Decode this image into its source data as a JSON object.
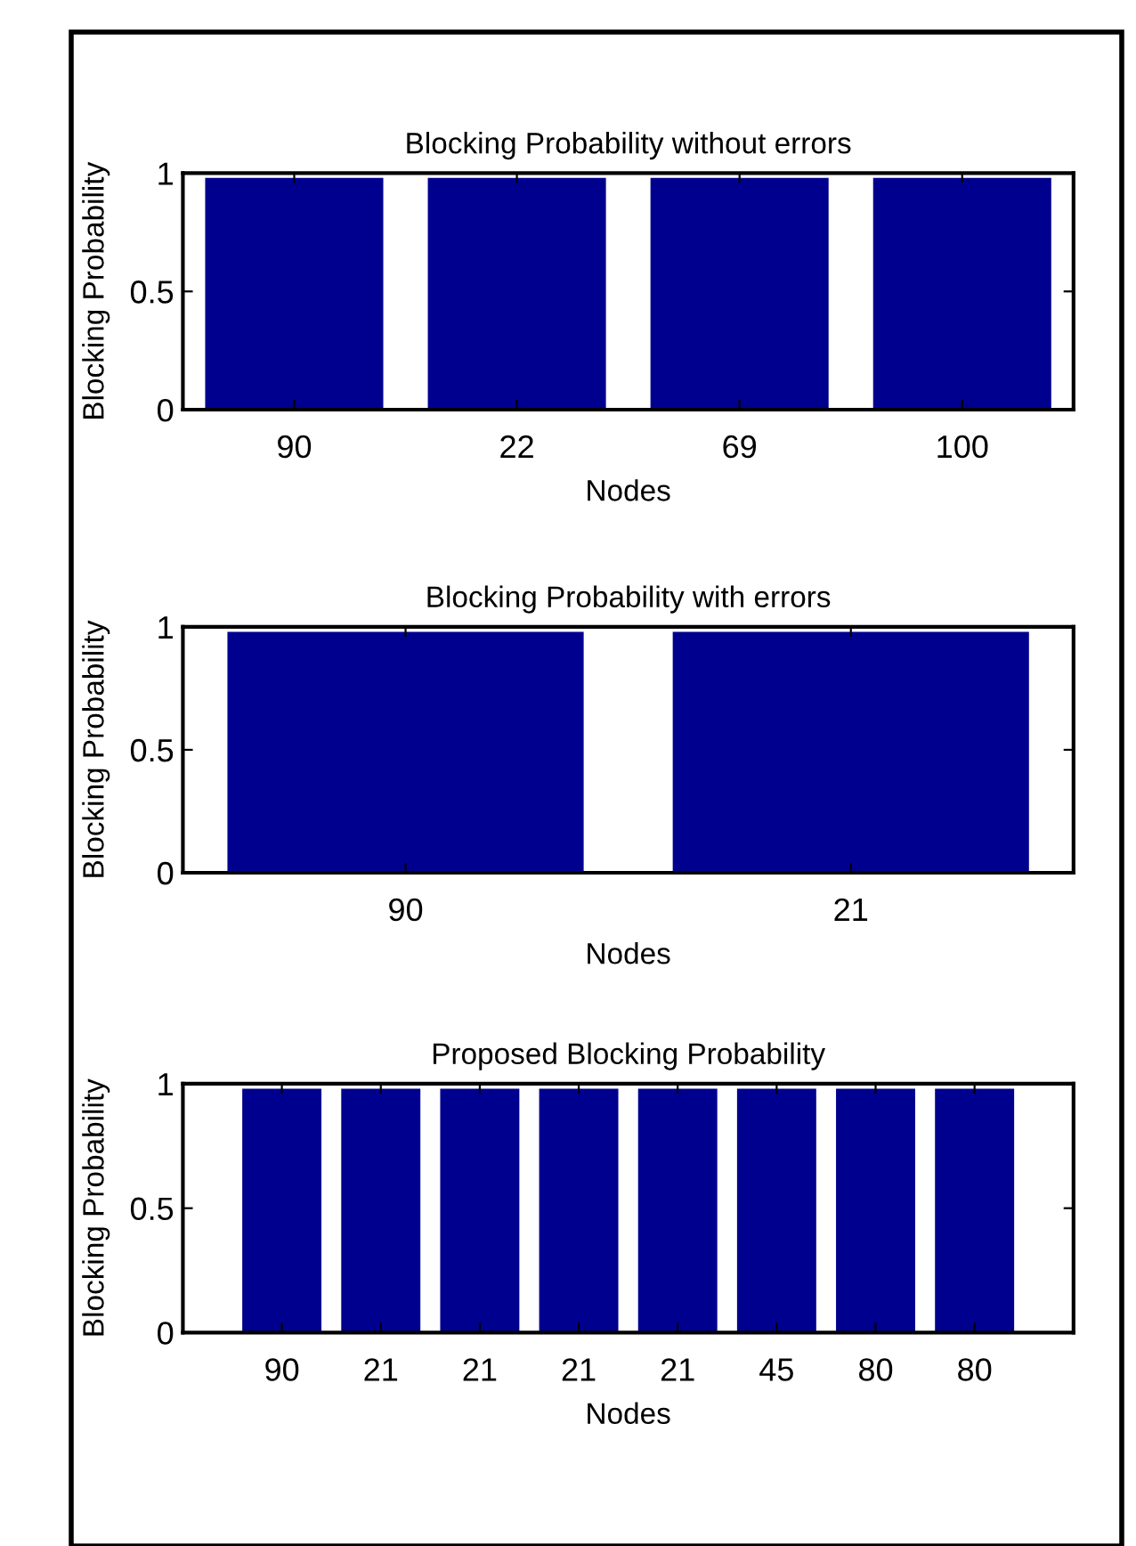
{
  "chart_data": [
    {
      "type": "bar",
      "title": "Blocking Probability without errors",
      "xlabel": "Nodes",
      "ylabel": "Blocking Probability",
      "categories": [
        "90",
        "22",
        "69",
        "100"
      ],
      "values": [
        0.98,
        0.98,
        0.98,
        0.98
      ],
      "color": "#00008f",
      "ylim": [
        0,
        1
      ],
      "yticks": [
        0,
        0.5,
        1
      ],
      "grid": false,
      "legend": false
    },
    {
      "type": "bar",
      "title": "Blocking Probability with errors",
      "xlabel": "Nodes",
      "ylabel": "Blocking Probability",
      "categories": [
        "90",
        "21"
      ],
      "values": [
        0.98,
        0.98
      ],
      "color": "#00008f",
      "ylim": [
        0,
        1
      ],
      "yticks": [
        0,
        0.5,
        1
      ],
      "grid": false,
      "legend": false
    },
    {
      "type": "bar",
      "title": "Proposed Blocking Probability",
      "xlabel": "Nodes",
      "ylabel": "Blocking Probability",
      "categories": [
        "90",
        "21",
        "21",
        "21",
        "21",
        "45",
        "80",
        "80"
      ],
      "values": [
        0.98,
        0.98,
        0.98,
        0.98,
        0.98,
        0.98,
        0.98,
        0.98
      ],
      "color": "#00008f",
      "ylim": [
        0,
        1
      ],
      "yticks": [
        0,
        0.5,
        1
      ],
      "grid": false,
      "legend": false
    }
  ]
}
